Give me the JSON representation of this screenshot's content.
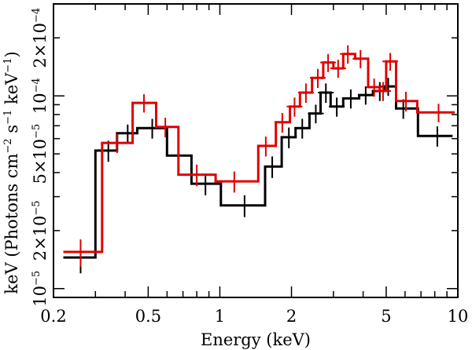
{
  "chart_data": {
    "type": "line",
    "style": "step-histogram-with-errorbars",
    "title": "",
    "xlabel": "Energy (keV)",
    "ylabel": {
      "parts": [
        "keV (Photons cm",
        "−2",
        " s",
        "−1",
        " keV",
        "−1",
        ")"
      ]
    },
    "x_scale": "log",
    "y_scale": "log",
    "xlim": [
      0.2,
      10
    ],
    "ylim": [
      9e-06,
      0.0003
    ],
    "x_ticks": [
      {
        "value": 0.2,
        "label": "0.2"
      },
      {
        "value": 0.5,
        "label": "0.5"
      },
      {
        "value": 1,
        "label": "1"
      },
      {
        "value": 2,
        "label": "2"
      },
      {
        "value": 5,
        "label": "5"
      },
      {
        "value": 10,
        "label": "10"
      }
    ],
    "y_ticks": [
      {
        "value": 1e-05,
        "mantissa": "",
        "exponent": "−5"
      },
      {
        "value": 2e-05,
        "mantissa": "2×",
        "exponent": "−5"
      },
      {
        "value": 5e-05,
        "mantissa": "5×",
        "exponent": "−5"
      },
      {
        "value": 0.0001,
        "mantissa": "",
        "exponent": "−4"
      },
      {
        "value": 0.0002,
        "mantissa": "2×",
        "exponent": "−4"
      }
    ],
    "y_tick_base": "10",
    "series": [
      {
        "name": "black",
        "color": "#000000",
        "bins": [
          {
            "x": 0.26,
            "xlo": 0.22,
            "xhi": 0.3,
            "y": 1.45e-05,
            "yerr": 2.5e-06
          },
          {
            "x": 0.34,
            "xlo": 0.3,
            "xhi": 0.37,
            "y": 5.2e-05,
            "yerr": 6.5e-06
          },
          {
            "x": 0.41,
            "xlo": 0.37,
            "xhi": 0.45,
            "y": 6.4e-05,
            "yerr": 7e-06
          },
          {
            "x": 0.52,
            "xlo": 0.45,
            "xhi": 0.6,
            "y": 6.8e-05,
            "yerr": 8e-06
          },
          {
            "x": 0.67,
            "xlo": 0.6,
            "xhi": 0.76,
            "y": 4.9e-05,
            "yerr": 6e-06
          },
          {
            "x": 0.87,
            "xlo": 0.76,
            "xhi": 1.01,
            "y": 3.5e-05,
            "yerr": 4.5e-06
          },
          {
            "x": 1.27,
            "xlo": 1.01,
            "xhi": 1.55,
            "y": 2.7e-05,
            "yerr": 3.5e-06
          },
          {
            "x": 1.66,
            "xlo": 1.55,
            "xhi": 1.82,
            "y": 4.3e-05,
            "yerr": 5.5e-06
          },
          {
            "x": 1.95,
            "xlo": 1.82,
            "xhi": 2.08,
            "y": 6.1e-05,
            "yerr": 7.5e-06
          },
          {
            "x": 2.22,
            "xlo": 2.08,
            "xhi": 2.38,
            "y": 6.8e-05,
            "yerr": 8e-06
          },
          {
            "x": 2.53,
            "xlo": 2.38,
            "xhi": 2.65,
            "y": 8.1e-05,
            "yerr": 9e-06
          },
          {
            "x": 2.79,
            "xlo": 2.65,
            "xhi": 2.92,
            "y": 0.000104,
            "yerr": 1.2e-05
          },
          {
            "x": 3.1,
            "xlo": 2.92,
            "xhi": 3.3,
            "y": 8.8e-05,
            "yerr": 1e-05
          },
          {
            "x": 3.55,
            "xlo": 3.3,
            "xhi": 3.85,
            "y": 9.7e-05,
            "yerr": 1.1e-05
          },
          {
            "x": 4.1,
            "xlo": 3.85,
            "xhi": 4.4,
            "y": 0.000101,
            "yerr": 1.1e-05
          },
          {
            "x": 4.7,
            "xlo": 4.4,
            "xhi": 4.9,
            "y": 0.000106,
            "yerr": 1.2e-05
          },
          {
            "x": 5.1,
            "xlo": 4.9,
            "xhi": 5.5,
            "y": 0.000112,
            "yerr": 1.2e-05
          },
          {
            "x": 5.9,
            "xlo": 5.5,
            "xhi": 6.8,
            "y": 8.6e-05,
            "yerr": 1e-05
          },
          {
            "x": 8.2,
            "xlo": 6.8,
            "xhi": 9.5,
            "y": 6.2e-05,
            "yerr": 7.5e-06
          }
        ]
      },
      {
        "name": "red",
        "color": "#e00000",
        "bins": [
          {
            "x": 0.26,
            "xlo": 0.22,
            "xhi": 0.32,
            "y": 1.55e-05,
            "yerr": 2.5e-06
          },
          {
            "x": 0.37,
            "xlo": 0.32,
            "xhi": 0.43,
            "y": 5.7e-05,
            "yerr": 6.5e-06
          },
          {
            "x": 0.48,
            "xlo": 0.43,
            "xhi": 0.54,
            "y": 9.2e-05,
            "yerr": 1e-05
          },
          {
            "x": 0.59,
            "xlo": 0.54,
            "xhi": 0.67,
            "y": 6.9e-05,
            "yerr": 8e-06
          },
          {
            "x": 0.8,
            "xlo": 0.67,
            "xhi": 0.96,
            "y": 3.9e-05,
            "yerr": 5e-06
          },
          {
            "x": 1.15,
            "xlo": 0.96,
            "xhi": 1.45,
            "y": 3.6e-05,
            "yerr": 4.5e-06
          },
          {
            "x": 1.56,
            "xlo": 1.45,
            "xhi": 1.72,
            "y": 5.5e-05,
            "yerr": 6.5e-06
          },
          {
            "x": 1.83,
            "xlo": 1.72,
            "xhi": 1.97,
            "y": 7.3e-05,
            "yerr": 8.5e-06
          },
          {
            "x": 2.06,
            "xlo": 1.97,
            "xhi": 2.17,
            "y": 8.8e-05,
            "yerr": 1e-05
          },
          {
            "x": 2.3,
            "xlo": 2.17,
            "xhi": 2.44,
            "y": 0.000104,
            "yerr": 1.2e-05
          },
          {
            "x": 2.58,
            "xlo": 2.44,
            "xhi": 2.72,
            "y": 0.000124,
            "yerr": 1.4e-05
          },
          {
            "x": 2.85,
            "xlo": 2.72,
            "xhi": 3.0,
            "y": 0.000149,
            "yerr": 1.6e-05
          },
          {
            "x": 3.14,
            "xlo": 3.0,
            "xhi": 3.3,
            "y": 0.000139,
            "yerr": 1.5e-05
          },
          {
            "x": 3.45,
            "xlo": 3.3,
            "xhi": 3.7,
            "y": 0.000165,
            "yerr": 1.8e-05
          },
          {
            "x": 3.9,
            "xlo": 3.7,
            "xhi": 4.2,
            "y": 0.000156,
            "yerr": 1.7e-05
          },
          {
            "x": 4.45,
            "xlo": 4.2,
            "xhi": 4.7,
            "y": 0.000111,
            "yerr": 1.2e-05
          },
          {
            "x": 4.85,
            "xlo": 4.7,
            "xhi": 5.0,
            "y": 0.000106,
            "yerr": 1.2e-05
          },
          {
            "x": 5.2,
            "xlo": 5.0,
            "xhi": 5.5,
            "y": 0.000151,
            "yerr": 1.6e-05
          },
          {
            "x": 6.05,
            "xlo": 5.5,
            "xhi": 6.75,
            "y": 9.4e-05,
            "yerr": 1.1e-05
          },
          {
            "x": 8.3,
            "xlo": 6.75,
            "xhi": 9.7,
            "y": 8.2e-05,
            "yerr": 9e-06
          }
        ]
      }
    ]
  }
}
